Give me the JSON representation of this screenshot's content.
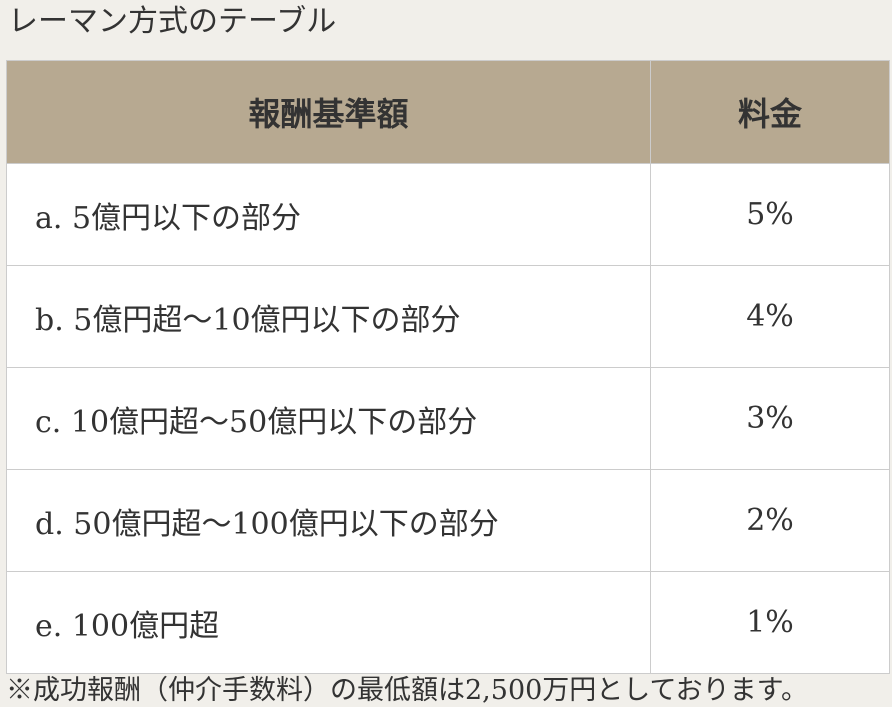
{
  "header": {
    "title": "レーマン方式のテーブル"
  },
  "table": {
    "columns": [
      "報酬基準額",
      "料金"
    ],
    "rows": [
      [
        "a. 5億円以下の部分",
        "5%"
      ],
      [
        "b. 5億円超〜10億円以下の部分",
        "4%"
      ],
      [
        "c. 10億円超〜50億円以下の部分",
        "3%"
      ],
      [
        "d. 50億円超〜100億円以下の部分",
        "2%"
      ],
      [
        "e. 100億円超",
        "1%"
      ]
    ]
  },
  "footnote": "※成功報酬（仲介手数料）の最低額は2,500万円としております。"
}
